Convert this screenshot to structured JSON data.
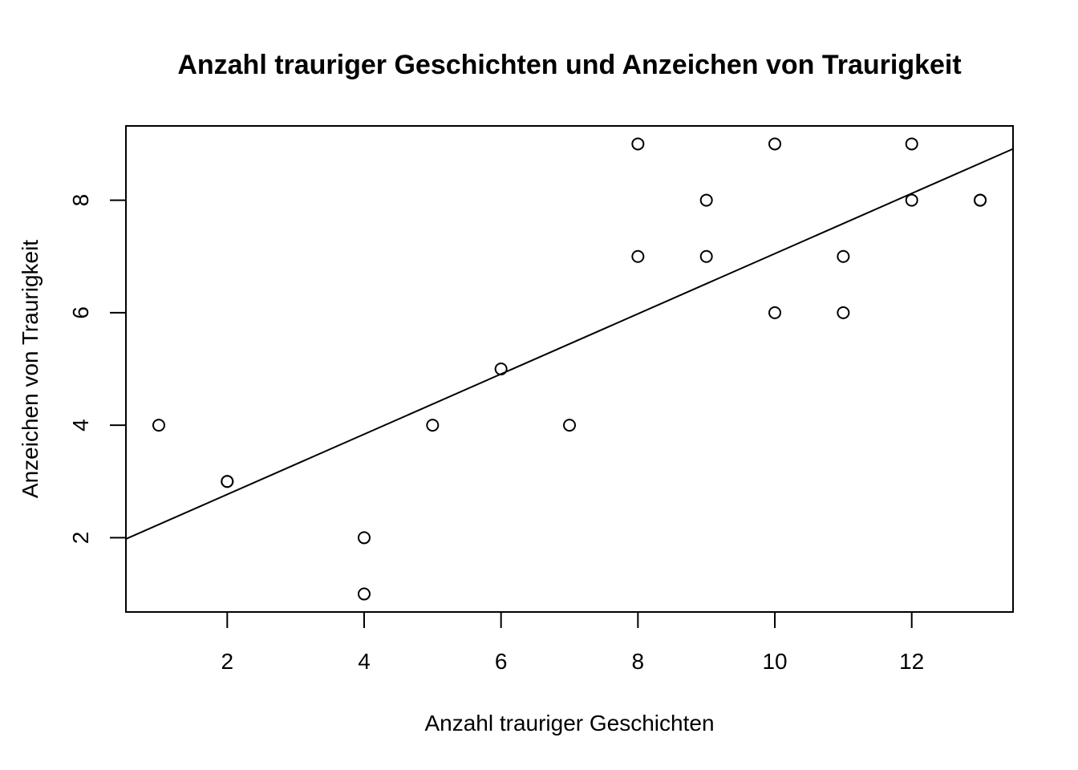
{
  "chart_data": {
    "type": "scatter",
    "title": "Anzahl trauriger Geschichten und Anzeichen von Traurigkeit",
    "xlabel": "Anzahl trauriger Geschichten",
    "ylabel": "Anzeichen von Traurigkeit",
    "xlim": [
      0.52,
      13.48
    ],
    "ylim": [
      0.68,
      9.32
    ],
    "xticks": [
      2,
      4,
      6,
      8,
      10,
      12
    ],
    "yticks": [
      2,
      4,
      6,
      8
    ],
    "grid": false,
    "legend": "none",
    "points": [
      {
        "x": 1,
        "y": 4
      },
      {
        "x": 2,
        "y": 3
      },
      {
        "x": 2,
        "y": 3
      },
      {
        "x": 4,
        "y": 2
      },
      {
        "x": 4,
        "y": 1
      },
      {
        "x": 5,
        "y": 4
      },
      {
        "x": 6,
        "y": 5
      },
      {
        "x": 7,
        "y": 4
      },
      {
        "x": 8,
        "y": 9
      },
      {
        "x": 8,
        "y": 7
      },
      {
        "x": 9,
        "y": 8
      },
      {
        "x": 9,
        "y": 7
      },
      {
        "x": 10,
        "y": 9
      },
      {
        "x": 10,
        "y": 6
      },
      {
        "x": 11,
        "y": 7
      },
      {
        "x": 11,
        "y": 6
      },
      {
        "x": 12,
        "y": 9
      },
      {
        "x": 12,
        "y": 8
      },
      {
        "x": 13,
        "y": 8
      },
      {
        "x": 13,
        "y": 8
      }
    ],
    "regression_line": {
      "intercept": 1.7,
      "slope": 0.535
    }
  }
}
